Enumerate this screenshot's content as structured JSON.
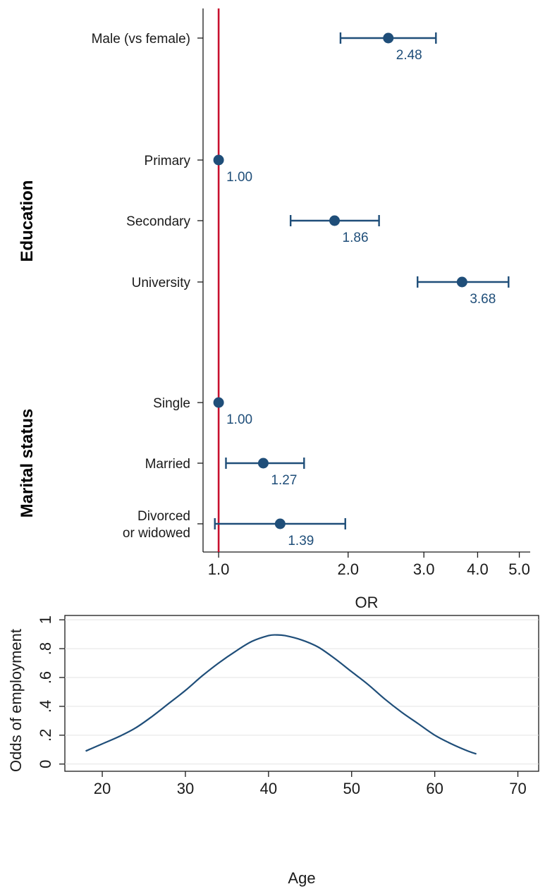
{
  "chart_data": [
    {
      "type": "forest",
      "xlabel": "OR",
      "xscale": "log",
      "xlim": [
        0.92,
        5.3
      ],
      "reference_line": 1.0,
      "reference_color": "#c8102e",
      "marker_color": "#1f4e79",
      "xticks": [
        {
          "value": 1.0,
          "label": "1.0"
        },
        {
          "value": 2.0,
          "label": "2.0"
        },
        {
          "value": 3.0,
          "label": "3.0"
        },
        {
          "value": 4.0,
          "label": "4.0"
        },
        {
          "value": 5.0,
          "label": "5.0"
        }
      ],
      "groups": [
        {
          "label": "Education",
          "rows": [
            1,
            2,
            3
          ]
        },
        {
          "label": "Marital status",
          "rows": [
            4,
            5,
            6
          ]
        }
      ],
      "rows": [
        {
          "label": [
            "Male (vs female)"
          ],
          "or": 2.48,
          "lo": 1.92,
          "hi": 3.2,
          "value_label": "2.48"
        },
        {
          "label": [
            "Primary"
          ],
          "or": 1.0,
          "lo": null,
          "hi": null,
          "value_label": "1.00"
        },
        {
          "label": [
            "Secondary"
          ],
          "or": 1.86,
          "lo": 1.47,
          "hi": 2.36,
          "value_label": "1.86"
        },
        {
          "label": [
            "University"
          ],
          "or": 3.68,
          "lo": 2.9,
          "hi": 4.72,
          "value_label": "3.68"
        },
        {
          "label": [
            "Single"
          ],
          "or": 1.0,
          "lo": null,
          "hi": null,
          "value_label": "1.00"
        },
        {
          "label": [
            "Married"
          ],
          "or": 1.27,
          "lo": 1.04,
          "hi": 1.58,
          "value_label": "1.27"
        },
        {
          "label": [
            "Divorced",
            "or widowed"
          ],
          "or": 1.39,
          "lo": 0.98,
          "hi": 1.97,
          "value_label": "1.39"
        }
      ]
    },
    {
      "type": "line",
      "xlabel": "Age",
      "ylabel": "Odds of employment",
      "xlim": [
        15.5,
        72.5
      ],
      "ylim": [
        -0.05,
        1.03
      ],
      "grid": true,
      "line_color": "#1f4e79",
      "xticks": [
        {
          "value": 20,
          "label": "20"
        },
        {
          "value": 30,
          "label": "30"
        },
        {
          "value": 40,
          "label": "40"
        },
        {
          "value": 50,
          "label": "50"
        },
        {
          "value": 60,
          "label": "60"
        },
        {
          "value": 70,
          "label": "70"
        }
      ],
      "yticks": [
        {
          "value": 0,
          "label": "0"
        },
        {
          "value": 0.2,
          "label": ".2"
        },
        {
          "value": 0.4,
          "label": ".4"
        },
        {
          "value": 0.6,
          "label": ".6"
        },
        {
          "value": 0.8,
          "label": ".8"
        },
        {
          "value": 1,
          "label": "1"
        }
      ],
      "x": [
        18,
        20,
        22,
        24,
        26,
        28,
        30,
        32,
        34,
        36,
        38,
        40,
        41,
        42,
        44,
        46,
        48,
        50,
        52,
        54,
        56,
        58,
        60,
        62,
        64,
        65
      ],
      "y": [
        0.09,
        0.14,
        0.19,
        0.25,
        0.33,
        0.42,
        0.51,
        0.61,
        0.7,
        0.78,
        0.85,
        0.89,
        0.895,
        0.89,
        0.86,
        0.81,
        0.73,
        0.64,
        0.55,
        0.45,
        0.36,
        0.28,
        0.2,
        0.14,
        0.09,
        0.07
      ]
    }
  ]
}
